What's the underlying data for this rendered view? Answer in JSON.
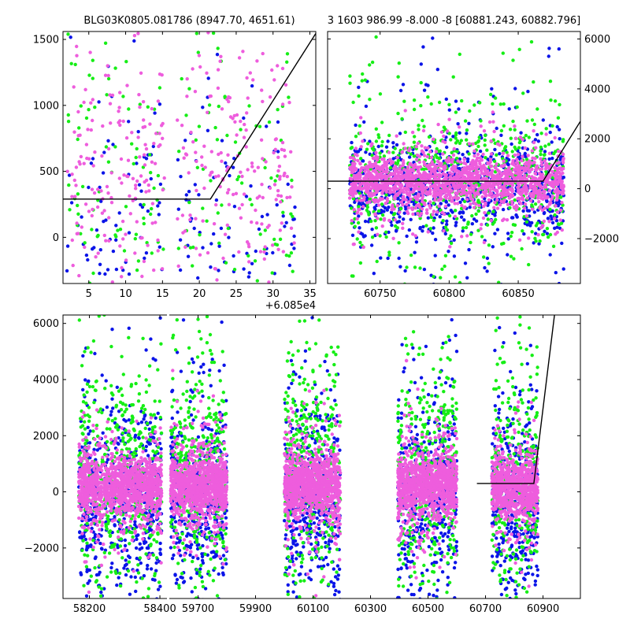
{
  "colors": {
    "background": "#ffffff",
    "series_blue": "#0a14e8",
    "series_green": "#16ee16",
    "series_pink": "#ee5ddd",
    "model_line": "#000000"
  },
  "chart_data": [
    {
      "type": "scatter",
      "panel": "top-left",
      "title": "BLG03K0805.081786 (8947.70, 4651.61)",
      "xlim": [
        1.5,
        35.8
      ],
      "ylim": [
        -350,
        1560
      ],
      "x_offset_label": "+6.085e4",
      "x_ticks": [
        5,
        10,
        15,
        20,
        25,
        30,
        35
      ],
      "x_tick_labels": [
        "5",
        "10",
        "15",
        "20",
        "25",
        "30",
        "35"
      ],
      "y_ticks": [
        0,
        500,
        1000,
        1500
      ],
      "y_tick_labels": [
        "0",
        "500",
        "1000",
        "1500"
      ],
      "y_axis_side": "left",
      "gaps": [
        [
          15.3,
          16.8
        ]
      ],
      "clumps": [
        [
          2,
          15.3
        ],
        [
          17,
          33
        ]
      ],
      "model_line": [
        [
          1.5,
          290
        ],
        [
          21.5,
          290
        ],
        [
          35.8,
          1545
        ]
      ],
      "series": [
        {
          "color": "series_blue",
          "count": 220,
          "center": 0,
          "spread": 500
        },
        {
          "color": "series_green",
          "count": 230,
          "center": 250,
          "spread": 650
        },
        {
          "color": "series_pink",
          "count": 380,
          "center": 450,
          "spread": 420
        }
      ]
    },
    {
      "type": "scatter",
      "panel": "top-right",
      "title": "3 1603 986.99 -8.000 -8 [60881.243, 60882.796]",
      "xlim": [
        60712,
        60895
      ],
      "ylim": [
        -3800,
        6300
      ],
      "x_ticks": [
        60750,
        60800,
        60850
      ],
      "x_tick_labels": [
        "60750",
        "60800",
        "60850"
      ],
      "y_ticks": [
        -2000,
        0,
        2000,
        4000,
        6000
      ],
      "y_tick_labels": [
        "−2000",
        "0",
        "2000",
        "4000",
        "6000"
      ],
      "y_axis_side": "right",
      "clumps": [
        [
          60728,
          60883
        ]
      ],
      "model_line": [
        [
          60712,
          300
        ],
        [
          60868,
          300
        ],
        [
          60895,
          2700
        ]
      ],
      "series": [
        {
          "color": "series_blue",
          "count": 900,
          "center": 0,
          "spread": 900
        },
        {
          "color": "series_green",
          "count": 650,
          "center": 450,
          "spread": 1300
        },
        {
          "color": "series_pink",
          "count": 1600,
          "center": 300,
          "spread": 450
        }
      ]
    },
    {
      "type": "scatter",
      "panel": "bottom",
      "xlim": [
        58125,
        61030
      ],
      "ylim": [
        -3800,
        6300
      ],
      "break": {
        "left_xlim": [
          58125,
          58420
        ],
        "right_xlim": [
          59600,
          61030
        ]
      },
      "x_ticks": [
        58200,
        58400,
        59700,
        59900,
        60100,
        60300,
        60500,
        60700,
        60900
      ],
      "x_tick_labels": [
        "58200",
        "58400",
        "59700",
        "59900",
        "60100",
        "60300",
        "60500",
        "60700",
        "60900"
      ],
      "y_ticks": [
        -2000,
        0,
        2000,
        4000,
        6000
      ],
      "y_tick_labels": [
        "−2000",
        "0",
        "2000",
        "4000",
        "6000"
      ],
      "y_axis_side": "left",
      "clumps": [
        [
          58170,
          58405
        ],
        [
          59605,
          59800
        ],
        [
          60000,
          60195
        ],
        [
          60395,
          60600
        ],
        [
          60722,
          60882
        ]
      ],
      "model_line": [
        [
          60670,
          300
        ],
        [
          60868,
          300
        ],
        [
          60940,
          6300
        ]
      ],
      "series": [
        {
          "color": "series_blue",
          "count": 2400,
          "center": -300,
          "spread": 1500
        },
        {
          "color": "series_green",
          "count": 2000,
          "center": 600,
          "spread": 1900
        },
        {
          "color": "series_pink",
          "count": 6500,
          "center": 200,
          "spread": 480
        }
      ]
    }
  ]
}
